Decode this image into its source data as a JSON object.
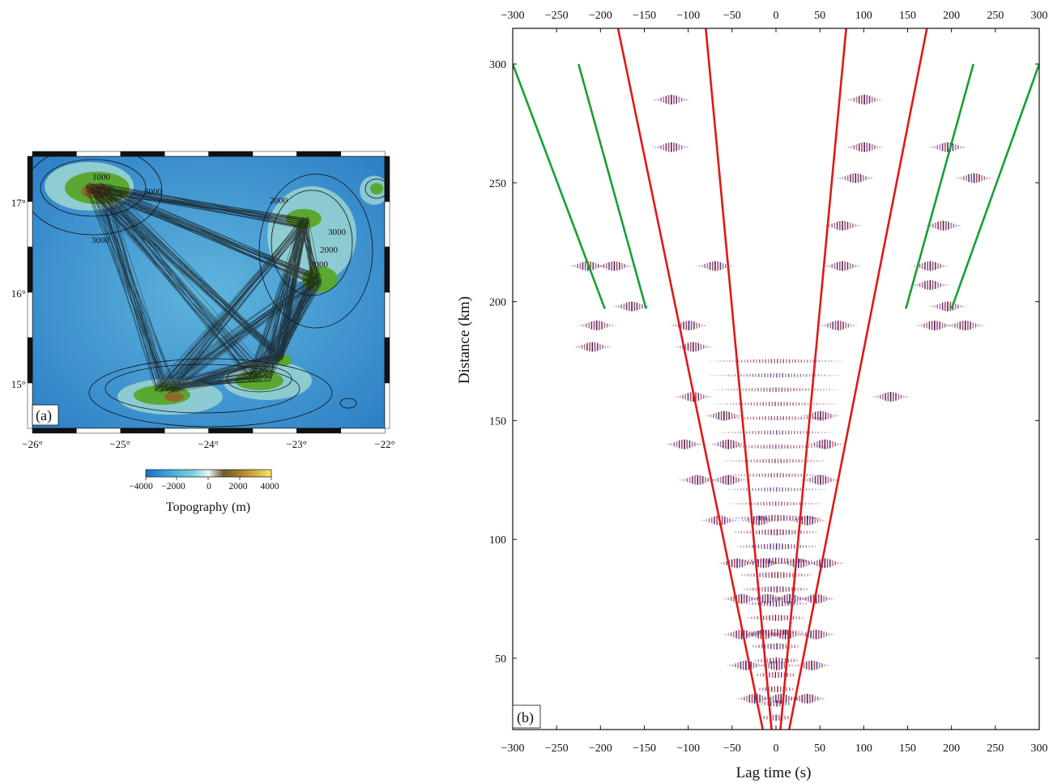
{
  "figure_panels": {
    "a": {
      "label": "(a)",
      "lon_ticks": [
        "−26°",
        "−25°",
        "−24°",
        "−23°",
        "−22°"
      ],
      "lat_ticks": [
        "17°",
        "16°",
        "15°"
      ],
      "colorbar": {
        "ticks": [
          "−4000",
          "−2000",
          "0",
          "2000",
          "4000"
        ],
        "label": "Topography (m)",
        "colors": [
          "#1f6fc0",
          "#36a9d6",
          "#7fd1e0",
          "#e8f6f3",
          "#6e5a2a",
          "#b9912f",
          "#ffe766"
        ]
      },
      "contour_labels": [
        "1000",
        "3000",
        "3000",
        "2000",
        "3000",
        "3000",
        "2000"
      ],
      "map_colors": {
        "ocean_deep": "#2a7cc8",
        "ocean": "#4fa7d9",
        "shelf": "#9fd8d2",
        "land_low": "#5aa832",
        "land_high": "#8c6a2a"
      }
    },
    "b": {
      "label": "(b)",
      "xlabel": "Lag time (s)",
      "ylabel": "Distance (km)",
      "x_ticks": [
        "−300",
        "−250",
        "−200",
        "−150",
        "−100",
        "−50",
        "0",
        "50",
        "100",
        "150",
        "200",
        "250",
        "300"
      ],
      "y_ticks": [
        "300",
        "250",
        "200",
        "150",
        "100",
        "50"
      ],
      "line_colors": {
        "red": "#e01818",
        "green": "#16a035",
        "wave_pos": "#1c1c8c",
        "wave_neg": "#c83030"
      }
    }
  },
  "chart_data": {
    "type": "line",
    "xlabel": "Lag time (s)",
    "ylabel": "Distance (km)",
    "xlim": [
      -300,
      300
    ],
    "ylim": [
      20,
      315
    ],
    "series": [
      {
        "color": "red",
        "points": [
          [
            -180,
            315
          ],
          [
            -15,
            20
          ]
        ]
      },
      {
        "color": "red",
        "points": [
          [
            -80,
            315
          ],
          [
            -5,
            20
          ]
        ]
      },
      {
        "color": "red",
        "points": [
          [
            80,
            315
          ],
          [
            5,
            20
          ]
        ]
      },
      {
        "color": "red",
        "points": [
          [
            172,
            315
          ],
          [
            15,
            20
          ]
        ]
      },
      {
        "color": "green",
        "points": [
          [
            -300,
            300
          ],
          [
            -195,
            197
          ]
        ]
      },
      {
        "color": "green",
        "points": [
          [
            -225,
            300
          ],
          [
            -148,
            197
          ]
        ]
      },
      {
        "color": "green",
        "points": [
          [
            225,
            300
          ],
          [
            148,
            197
          ]
        ]
      },
      {
        "color": "green",
        "points": [
          [
            300,
            300
          ],
          [
            200,
            197
          ]
        ]
      }
    ],
    "wavefield_bands": [
      {
        "distance": 285,
        "lags": [
          -120,
          100
        ]
      },
      {
        "distance": 265,
        "lags": [
          -120,
          100,
          195
        ]
      },
      {
        "distance": 252,
        "lags": [
          90,
          225
        ]
      },
      {
        "distance": 232,
        "lags": [
          75,
          190
        ]
      },
      {
        "distance": 215,
        "lags": [
          -215,
          -185,
          -70,
          75,
          175
        ]
      },
      {
        "distance": 207,
        "lags": [
          175
        ]
      },
      {
        "distance": 198,
        "lags": [
          -165,
          195
        ]
      },
      {
        "distance": 190,
        "lags": [
          -205,
          -100,
          70,
          180,
          215
        ]
      },
      {
        "distance": 181,
        "lags": [
          -210,
          -95
        ]
      },
      {
        "distance": 160,
        "lags": [
          -95,
          130
        ]
      },
      {
        "distance": 152,
        "lags": [
          -60,
          50
        ]
      },
      {
        "distance": 140,
        "lags": [
          -105,
          -55,
          55
        ]
      },
      {
        "distance": 125,
        "lags": [
          -90,
          -55,
          50
        ]
      },
      {
        "distance": 108,
        "lags": [
          -65,
          -20,
          35
        ]
      },
      {
        "distance": 90,
        "lags": [
          -45,
          -15,
          25,
          55
        ]
      },
      {
        "distance": 75,
        "lags": [
          -40,
          -10,
          15,
          45
        ]
      },
      {
        "distance": 60,
        "lags": [
          -40,
          -15,
          10,
          45
        ]
      },
      {
        "distance": 47,
        "lags": [
          -35,
          0,
          40
        ]
      },
      {
        "distance": 33,
        "lags": [
          -25,
          5,
          35
        ]
      }
    ]
  }
}
